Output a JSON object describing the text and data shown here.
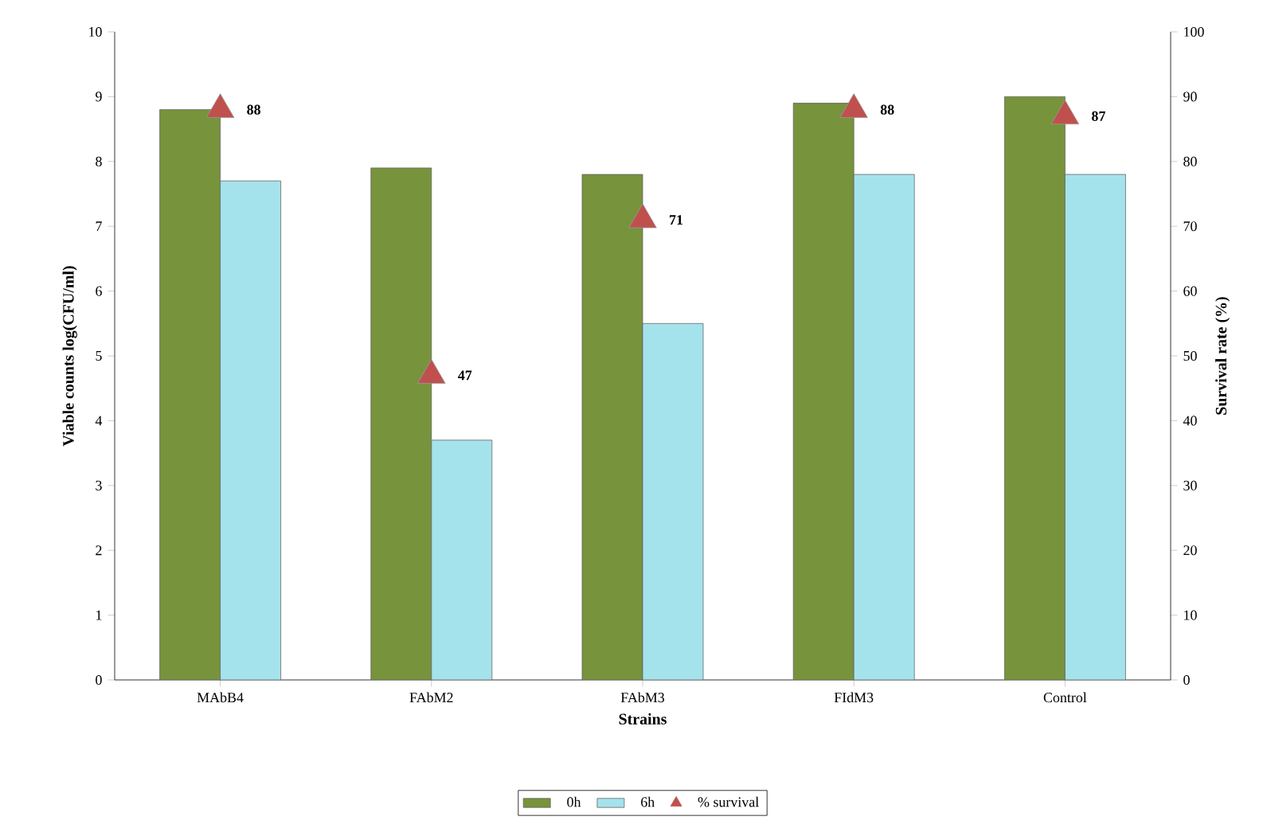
{
  "chart_data": {
    "type": "bar",
    "xlabel": "Strains",
    "ylabel": "Viable counts log(CFU/ml)",
    "y2label": "Survival rate (%)",
    "categories": [
      "MAbB4",
      "FAbM2",
      "FAbM3",
      "FIdM3",
      "Control"
    ],
    "series": [
      {
        "name": "0h",
        "color": "#77933c",
        "values": [
          8.8,
          7.9,
          7.8,
          8.9,
          9.0
        ]
      },
      {
        "name": "6h",
        "color": "#a5e3ec",
        "values": [
          7.7,
          3.7,
          5.5,
          7.8,
          7.8
        ]
      },
      {
        "name": "% survival",
        "type": "scatter",
        "axis": "y2",
        "color": "#c0504d",
        "marker": "triangle",
        "values": [
          88,
          47,
          71,
          88,
          87
        ],
        "value_labels": [
          "88",
          "47",
          "71",
          "88",
          "87"
        ]
      }
    ],
    "ylim": [
      0,
      10
    ],
    "yticks": [
      0,
      1,
      2,
      3,
      4,
      5,
      6,
      7,
      8,
      9,
      10
    ],
    "y2lim": [
      0,
      100
    ],
    "y2ticks": [
      0,
      10,
      20,
      30,
      40,
      50,
      60,
      70,
      80,
      90,
      100
    ],
    "grid": false,
    "legend": "bottom"
  }
}
